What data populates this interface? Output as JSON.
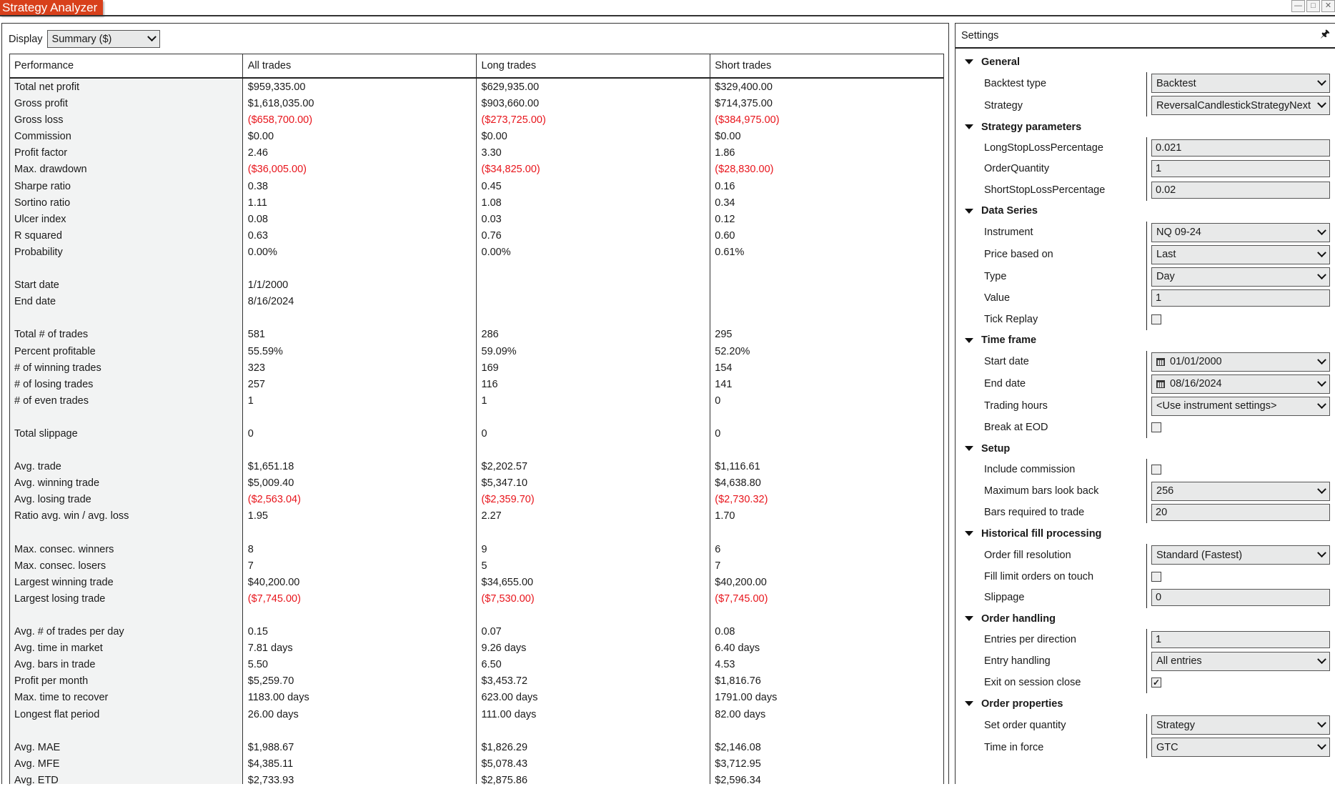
{
  "window": {
    "title": "Strategy Analyzer",
    "controls": [
      "minimize",
      "maximize",
      "close"
    ]
  },
  "display": {
    "label": "Display",
    "value": "Summary ($)"
  },
  "table": {
    "headers": [
      "Performance",
      "All trades",
      "Long trades",
      "Short trades"
    ],
    "negative_color": "#e8141b",
    "sections": [
      [
        [
          "Total net profit",
          "$959,335.00",
          "$629,935.00",
          "$329,400.00"
        ],
        [
          "Gross profit",
          "$1,618,035.00",
          "$903,660.00",
          "$714,375.00"
        ],
        [
          "Gross loss",
          "($658,700.00)",
          "($273,725.00)",
          "($384,975.00)"
        ],
        [
          "Commission",
          "$0.00",
          "$0.00",
          "$0.00"
        ],
        [
          "Profit factor",
          "2.46",
          "3.30",
          "1.86"
        ],
        [
          "Max. drawdown",
          "($36,005.00)",
          "($34,825.00)",
          "($28,830.00)"
        ],
        [
          "Sharpe ratio",
          "0.38",
          "0.45",
          "0.16"
        ],
        [
          "Sortino ratio",
          "1.11",
          "1.08",
          "0.34"
        ],
        [
          "Ulcer index",
          "0.08",
          "0.03",
          "0.12"
        ],
        [
          "R squared",
          "0.63",
          "0.76",
          "0.60"
        ],
        [
          "Probability",
          "0.00%",
          "0.00%",
          "0.61%"
        ]
      ],
      [
        [
          "Start date",
          "1/1/2000",
          "",
          ""
        ],
        [
          "End date",
          "8/16/2024",
          "",
          ""
        ]
      ],
      [
        [
          "Total # of trades",
          "581",
          "286",
          "295"
        ],
        [
          "Percent profitable",
          "55.59%",
          "59.09%",
          "52.20%"
        ],
        [
          "# of winning trades",
          "323",
          "169",
          "154"
        ],
        [
          "# of losing trades",
          "257",
          "116",
          "141"
        ],
        [
          "# of even trades",
          "1",
          "1",
          "0"
        ]
      ],
      [
        [
          "Total slippage",
          "0",
          "0",
          "0"
        ]
      ],
      [
        [
          "Avg. trade",
          "$1,651.18",
          "$2,202.57",
          "$1,116.61"
        ],
        [
          "Avg. winning trade",
          "$5,009.40",
          "$5,347.10",
          "$4,638.80"
        ],
        [
          "Avg. losing trade",
          "($2,563.04)",
          "($2,359.70)",
          "($2,730.32)"
        ],
        [
          "Ratio avg. win / avg. loss",
          "1.95",
          "2.27",
          "1.70"
        ]
      ],
      [
        [
          "Max. consec. winners",
          "8",
          "9",
          "6"
        ],
        [
          "Max. consec. losers",
          "7",
          "5",
          "7"
        ],
        [
          "Largest winning trade",
          "$40,200.00",
          "$34,655.00",
          "$40,200.00"
        ],
        [
          "Largest losing trade",
          "($7,745.00)",
          "($7,530.00)",
          "($7,745.00)"
        ]
      ],
      [
        [
          "Avg. # of trades per day",
          "0.15",
          "0.07",
          "0.08"
        ],
        [
          "Avg. time in market",
          "7.81 days",
          "9.26 days",
          "6.40 days"
        ],
        [
          "Avg. bars in trade",
          "5.50",
          "6.50",
          "4.53"
        ],
        [
          "Profit per month",
          "$5,259.70",
          "$3,453.72",
          "$1,816.76"
        ],
        [
          "Max. time to recover",
          "1183.00 days",
          "623.00 days",
          "1791.00 days"
        ],
        [
          "Longest flat period",
          "26.00 days",
          "111.00 days",
          "82.00 days"
        ]
      ],
      [
        [
          "Avg. MAE",
          "$1,988.67",
          "$1,826.29",
          "$2,146.08"
        ],
        [
          "Avg. MFE",
          "$4,385.11",
          "$5,078.43",
          "$3,712.95"
        ],
        [
          "Avg. ETD",
          "$2,733.93",
          "$2,875.86",
          "$2,596.34"
        ]
      ]
    ]
  },
  "settings": {
    "title": "Settings",
    "pin_icon": "pin-icon",
    "categories": [
      {
        "name": "General",
        "items": [
          {
            "label": "Backtest type",
            "type": "dropdown",
            "value": "Backtest"
          },
          {
            "label": "Strategy",
            "type": "dropdown",
            "value": "ReversalCandlestickStrategyNext"
          }
        ]
      },
      {
        "name": "Strategy parameters",
        "items": [
          {
            "label": "LongStopLossPercentage",
            "type": "text",
            "value": "0.021"
          },
          {
            "label": "OrderQuantity",
            "type": "text",
            "value": "1"
          },
          {
            "label": "ShortStopLossPercentage",
            "type": "text",
            "value": "0.02"
          }
        ]
      },
      {
        "name": "Data Series",
        "items": [
          {
            "label": "Instrument",
            "type": "dropdown",
            "value": "NQ 09-24"
          },
          {
            "label": "Price based on",
            "type": "dropdown",
            "value": "Last"
          },
          {
            "label": "Type",
            "type": "dropdown",
            "value": "Day"
          },
          {
            "label": "Value",
            "type": "text",
            "value": "1"
          },
          {
            "label": "Tick Replay",
            "type": "checkbox",
            "checked": false
          }
        ]
      },
      {
        "name": "Time frame",
        "items": [
          {
            "label": "Start date",
            "type": "date",
            "value": "01/01/2000"
          },
          {
            "label": "End date",
            "type": "date",
            "value": "08/16/2024"
          },
          {
            "label": "Trading hours",
            "type": "dropdown",
            "value": "<Use instrument settings>"
          },
          {
            "label": "Break at EOD",
            "type": "checkbox",
            "checked": false
          }
        ]
      },
      {
        "name": "Setup",
        "items": [
          {
            "label": "Include commission",
            "type": "checkbox",
            "checked": false
          },
          {
            "label": "Maximum bars look back",
            "type": "dropdown",
            "value": "256"
          },
          {
            "label": "Bars required to trade",
            "type": "text",
            "value": "20"
          }
        ]
      },
      {
        "name": "Historical fill processing",
        "items": [
          {
            "label": "Order fill resolution",
            "type": "dropdown",
            "value": "Standard (Fastest)"
          },
          {
            "label": "Fill limit orders on touch",
            "type": "checkbox",
            "checked": false
          },
          {
            "label": "Slippage",
            "type": "text",
            "value": "0"
          }
        ]
      },
      {
        "name": "Order handling",
        "items": [
          {
            "label": "Entries per direction",
            "type": "text",
            "value": "1"
          },
          {
            "label": "Entry handling",
            "type": "dropdown",
            "value": "All entries"
          },
          {
            "label": "Exit on session close",
            "type": "checkbox",
            "checked": true
          }
        ]
      },
      {
        "name": "Order properties",
        "items": [
          {
            "label": "Set order quantity",
            "type": "dropdown",
            "value": "Strategy"
          },
          {
            "label": "Time in force",
            "type": "dropdown",
            "value": "GTC"
          }
        ]
      }
    ]
  },
  "colors": {
    "title_tab": "#d8401b",
    "negative": "#e8141b",
    "performance_column_bg": "#f2f3f3"
  }
}
